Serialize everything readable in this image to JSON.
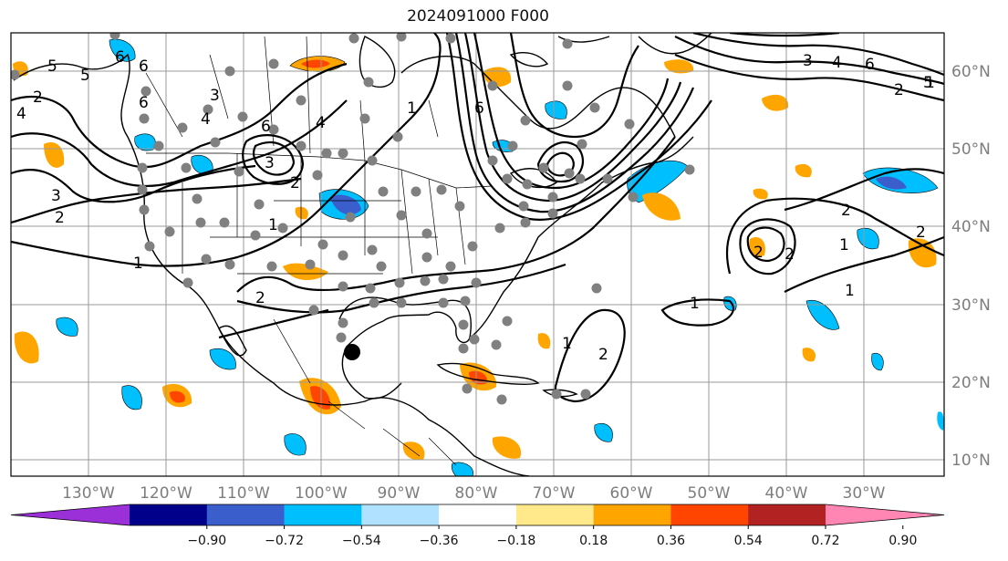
{
  "title": "2024091000 F000",
  "lon_labels": [
    "130°W",
    "120°W",
    "110°W",
    "100°W",
    "90°W",
    "80°W",
    "70°W",
    "60°W",
    "50°W",
    "40°W",
    "30°W"
  ],
  "lat_labels": [
    "60°N",
    "50°N",
    "40°N",
    "30°N",
    "20°N",
    "10°N"
  ],
  "colorbar": {
    "ticks": [
      "−0.90",
      "−0.72",
      "−0.54",
      "−0.36",
      "−0.18",
      "0.18",
      "0.36",
      "0.54",
      "0.72",
      "0.90"
    ],
    "colors": [
      "#9b30d8",
      "#00008b",
      "#3a5fcd",
      "#00bfff",
      "#b0e2ff",
      "#ffffff",
      "#ffe98a",
      "#ffa500",
      "#ff4500",
      "#b22222",
      "#ff85b3"
    ]
  },
  "contour_labels": [
    "5",
    "6",
    "4",
    "3",
    "2",
    "2",
    "1",
    "6",
    "6",
    "4",
    "3",
    "2",
    "2",
    "1",
    "6",
    "5",
    "3",
    "2",
    "1",
    "6",
    "4",
    "5",
    "3",
    "4",
    "6",
    "2",
    "2",
    "1",
    "2",
    "2",
    "1",
    "1",
    "1",
    "2",
    "1"
  ],
  "marker": "dark-dot"
}
